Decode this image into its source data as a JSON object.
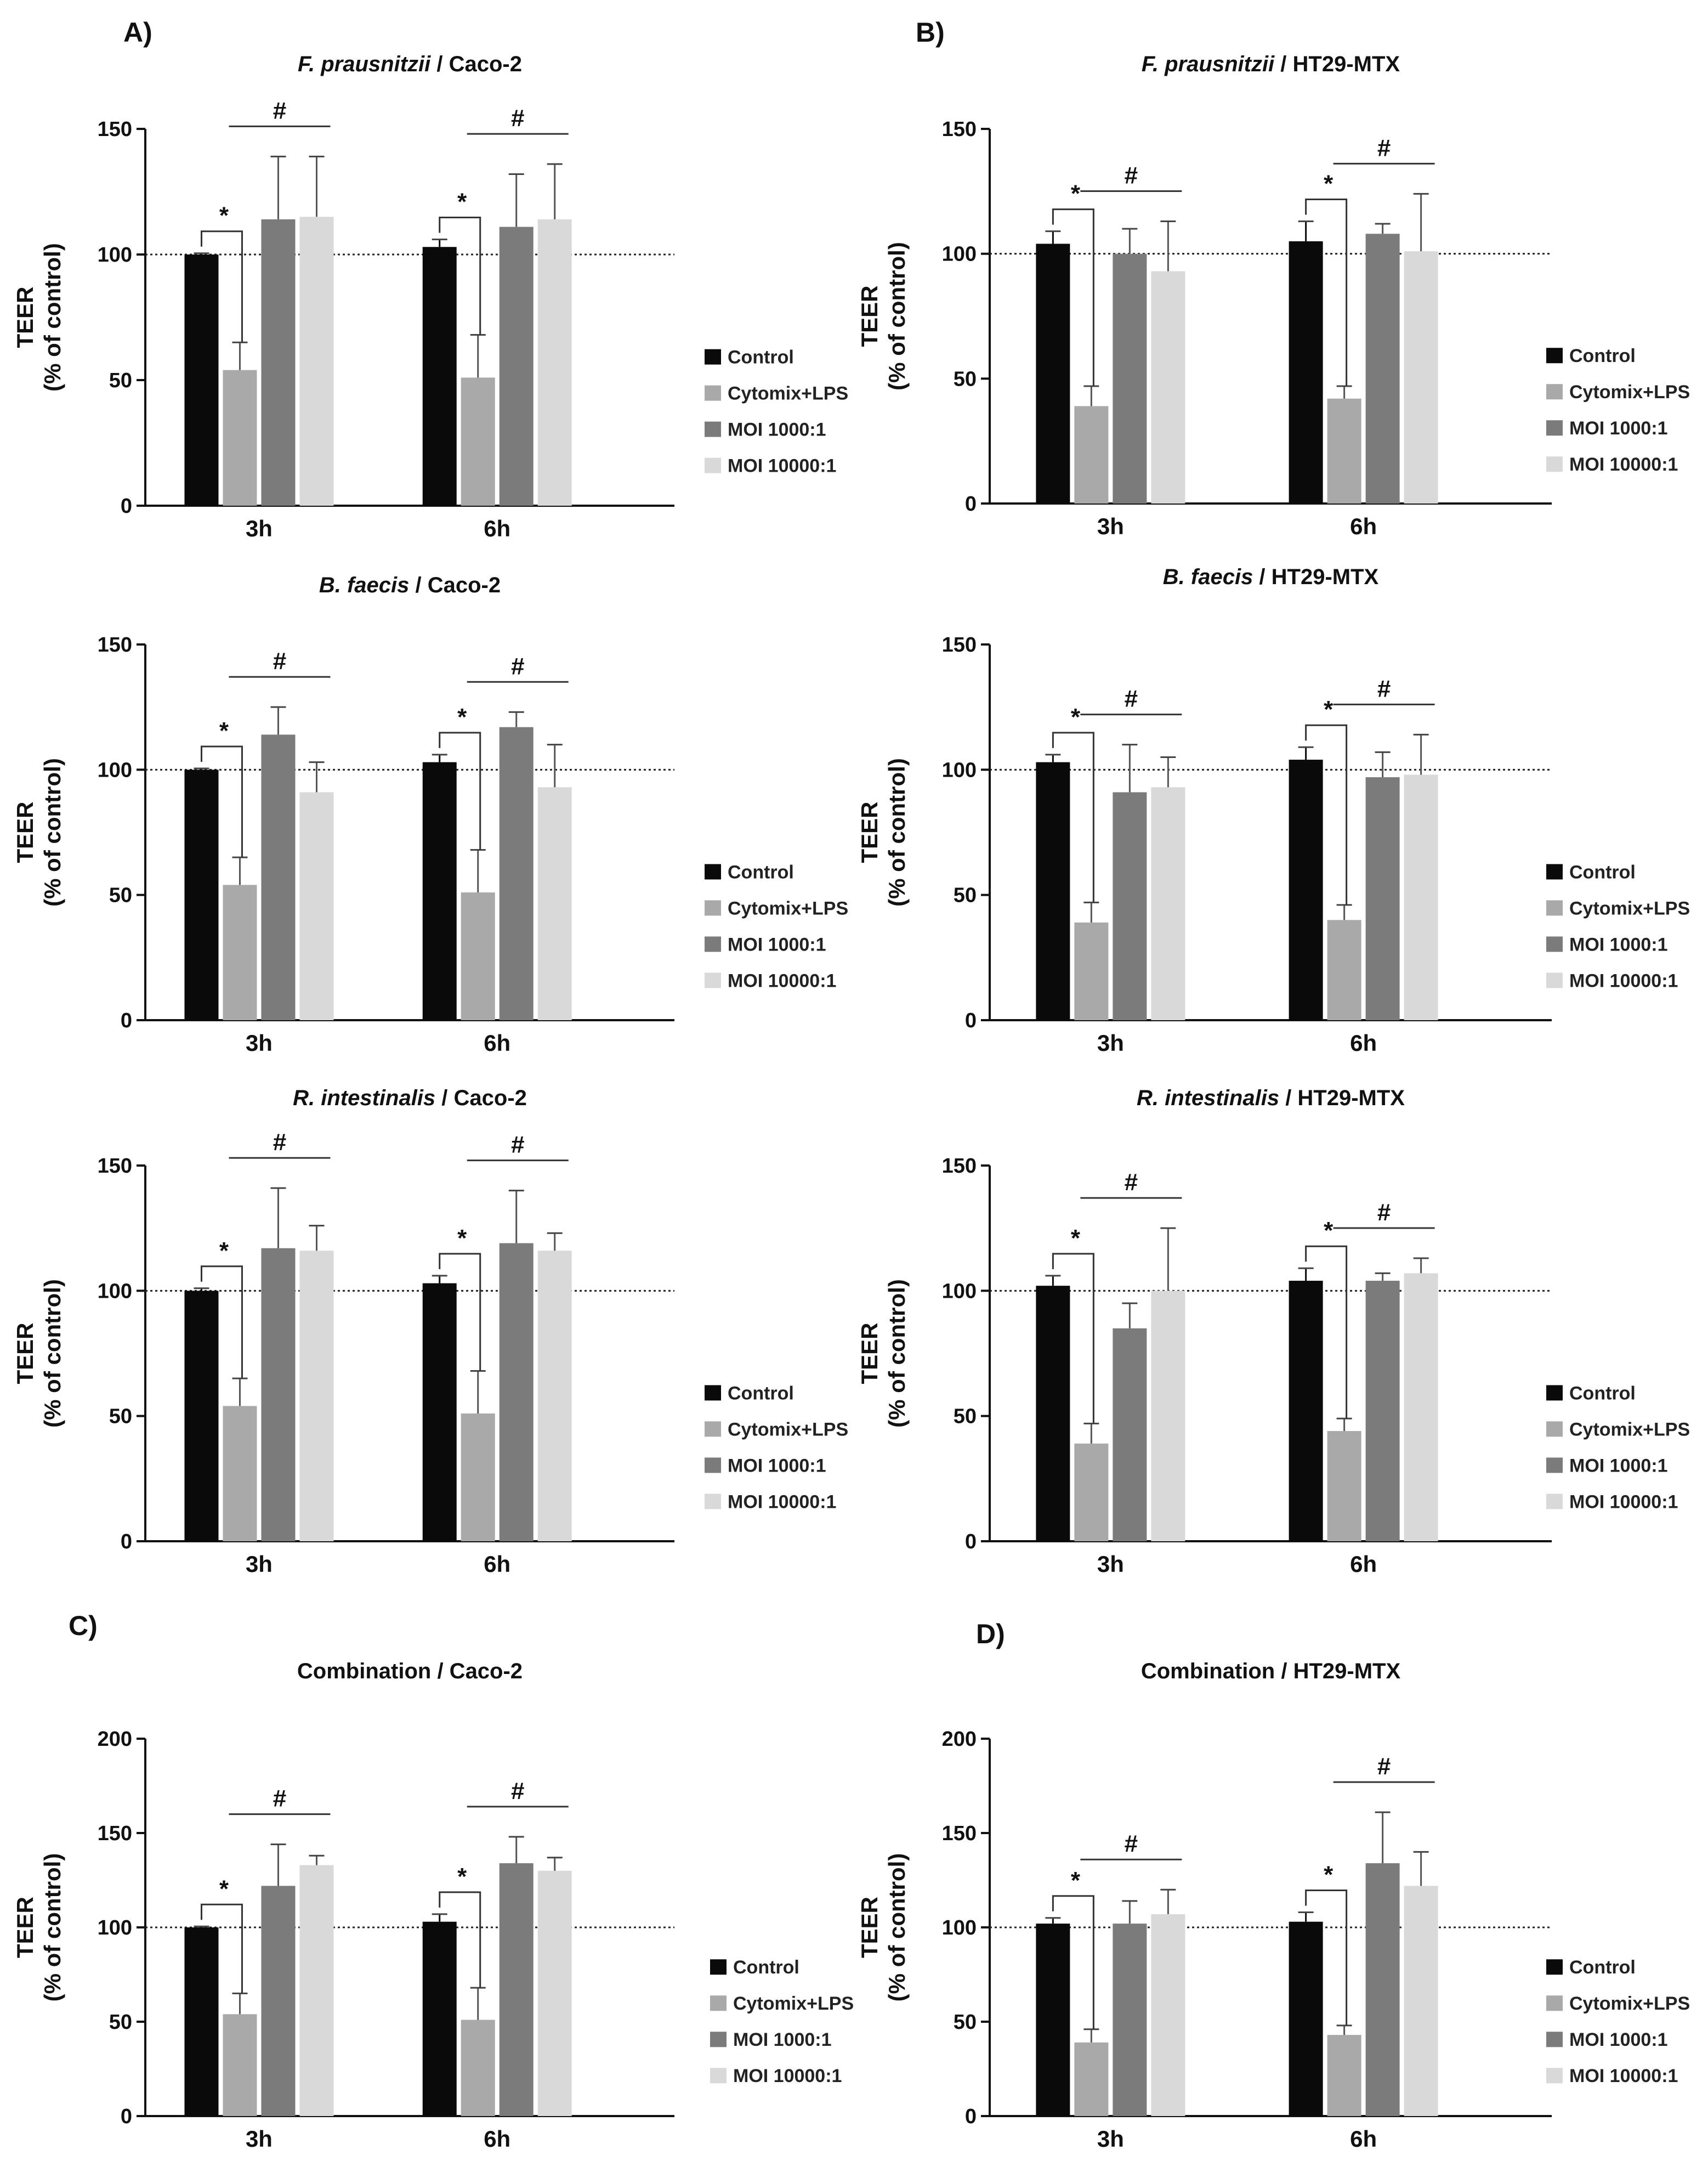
{
  "panel_labels": [
    "A)",
    "B)",
    "C)",
    "D)"
  ],
  "colors": {
    "Control": "#0a0a0a",
    "Cytomix+LPS": "#a9a9a9",
    "MOI 1000:1": "#7b7b7b",
    "MOI 10000:1": "#d9d9d9",
    "axis": "#111111"
  },
  "chart_data": [
    {
      "type": "bar",
      "title": "F. prausnitzii / Caco-2",
      "title_italic": "F. prausnitzii",
      "title_rest": " / Caco-2",
      "ylabel_lines": [
        "TEER",
        "(% of control)"
      ],
      "ylim": [
        0,
        150
      ],
      "yticks": [
        "0",
        "50",
        "100",
        "150"
      ],
      "reference_line": 100,
      "categories": [
        "3h",
        "6h"
      ],
      "series": [
        {
          "name": "Control",
          "values": [
            100,
            103
          ],
          "errors": [
            0.5,
            3
          ]
        },
        {
          "name": "Cytomix+LPS",
          "values": [
            54,
            51
          ],
          "errors": [
            11,
            17
          ]
        },
        {
          "name": "MOI 1000:1",
          "values": [
            114,
            111
          ],
          "errors": [
            25,
            21
          ]
        },
        {
          "name": "MOI 10000:1",
          "values": [
            115,
            114
          ],
          "errors": [
            24,
            22
          ]
        }
      ],
      "annotations": [
        "*",
        "#",
        "*",
        "#"
      ],
      "legend": [
        "Control",
        "Cytomix+LPS",
        "MOI 1000:1",
        "MOI 10000:1"
      ]
    },
    {
      "type": "bar",
      "title": "F. prausnitzii / HT29-MTX",
      "title_italic": "F. prausnitzii",
      "title_rest": " / HT29-MTX",
      "ylabel_lines": [
        "TEER",
        "(% of control)"
      ],
      "ylim": [
        0,
        150
      ],
      "yticks": [
        "0",
        "50",
        "100",
        "150"
      ],
      "reference_line": 100,
      "categories": [
        "3h",
        "6h"
      ],
      "series": [
        {
          "name": "Control",
          "values": [
            104,
            105
          ],
          "errors": [
            5,
            8
          ]
        },
        {
          "name": "Cytomix+LPS",
          "values": [
            39,
            42
          ],
          "errors": [
            8,
            5
          ]
        },
        {
          "name": "MOI 1000:1",
          "values": [
            100,
            108
          ],
          "errors": [
            10,
            4
          ]
        },
        {
          "name": "MOI 10000:1",
          "values": [
            93,
            101
          ],
          "errors": [
            20,
            23
          ]
        }
      ],
      "annotations": [
        "*",
        "#",
        "*",
        "#"
      ],
      "legend": [
        "Control",
        "Cytomix+LPS",
        "MOI 1000:1",
        "MOI 10000:1"
      ]
    },
    {
      "type": "bar",
      "title": "B. faecis / Caco-2",
      "title_italic": "B. faecis",
      "title_rest": " / Caco-2",
      "ylabel_lines": [
        "TEER",
        "(% of control)"
      ],
      "ylim": [
        0,
        150
      ],
      "yticks": [
        "0",
        "50",
        "100",
        "150"
      ],
      "reference_line": 100,
      "categories": [
        "3h",
        "6h"
      ],
      "series": [
        {
          "name": "Control",
          "values": [
            100,
            103
          ],
          "errors": [
            0.5,
            3
          ]
        },
        {
          "name": "Cytomix+LPS",
          "values": [
            54,
            51
          ],
          "errors": [
            11,
            17
          ]
        },
        {
          "name": "MOI 1000:1",
          "values": [
            114,
            117
          ],
          "errors": [
            11,
            6
          ]
        },
        {
          "name": "MOI 10000:1",
          "values": [
            91,
            93
          ],
          "errors": [
            12,
            17
          ]
        }
      ],
      "annotations": [
        "*",
        "#",
        "*",
        "#"
      ],
      "legend": [
        "Control",
        "Cytomix+LPS",
        "MOI 1000:1",
        "MOI 10000:1"
      ]
    },
    {
      "type": "bar",
      "title": "B. faecis / HT29-MTX",
      "title_italic": "B. faecis",
      "title_rest": " / HT29-MTX",
      "ylabel_lines": [
        "TEER",
        "(% of control)"
      ],
      "ylim": [
        0,
        150
      ],
      "yticks": [
        "0",
        "50",
        "100",
        "150"
      ],
      "reference_line": 100,
      "categories": [
        "3h",
        "6h"
      ],
      "series": [
        {
          "name": "Control",
          "values": [
            103,
            104
          ],
          "errors": [
            3,
            5
          ]
        },
        {
          "name": "Cytomix+LPS",
          "values": [
            39,
            40
          ],
          "errors": [
            8,
            6
          ]
        },
        {
          "name": "MOI 1000:1",
          "values": [
            91,
            97
          ],
          "errors": [
            19,
            10
          ]
        },
        {
          "name": "MOI 10000:1",
          "values": [
            93,
            98
          ],
          "errors": [
            12,
            16
          ]
        }
      ],
      "annotations": [
        "*",
        "#",
        "*",
        "#"
      ],
      "legend": [
        "Control",
        "Cytomix+LPS",
        "MOI 1000:1",
        "MOI 10000:1"
      ]
    },
    {
      "type": "bar",
      "title": "R. intestinalis / Caco-2",
      "title_italic": "R. intestinalis",
      "title_rest": " / Caco-2",
      "ylabel_lines": [
        "TEER",
        "(% of control)"
      ],
      "ylim": [
        0,
        150
      ],
      "yticks": [
        "0",
        "50",
        "100",
        "150"
      ],
      "reference_line": 100,
      "categories": [
        "3h",
        "6h"
      ],
      "series": [
        {
          "name": "Control",
          "values": [
            100,
            103
          ],
          "errors": [
            1,
            3
          ]
        },
        {
          "name": "Cytomix+LPS",
          "values": [
            54,
            51
          ],
          "errors": [
            11,
            17
          ]
        },
        {
          "name": "MOI 1000:1",
          "values": [
            117,
            119
          ],
          "errors": [
            24,
            21
          ]
        },
        {
          "name": "MOI 10000:1",
          "values": [
            116,
            116
          ],
          "errors": [
            10,
            7
          ]
        }
      ],
      "annotations": [
        "*",
        "#",
        "*",
        "#"
      ],
      "legend": [
        "Control",
        "Cytomix+LPS",
        "MOI 1000:1",
        "MOI 10000:1"
      ]
    },
    {
      "type": "bar",
      "title": "R. intestinalis / HT29-MTX",
      "title_italic": "R. intestinalis",
      "title_rest": " / HT29-MTX",
      "ylabel_lines": [
        "TEER",
        "(% of control)"
      ],
      "ylim": [
        0,
        150
      ],
      "yticks": [
        "0",
        "50",
        "100",
        "150"
      ],
      "reference_line": 100,
      "categories": [
        "3h",
        "6h"
      ],
      "series": [
        {
          "name": "Control",
          "values": [
            102,
            104
          ],
          "errors": [
            4,
            5
          ]
        },
        {
          "name": "Cytomix+LPS",
          "values": [
            39,
            44
          ],
          "errors": [
            8,
            5
          ]
        },
        {
          "name": "MOI 1000:1",
          "values": [
            85,
            104
          ],
          "errors": [
            10,
            3
          ]
        },
        {
          "name": "MOI 10000:1",
          "values": [
            100,
            107
          ],
          "errors": [
            25,
            6
          ]
        }
      ],
      "annotations": [
        "*",
        "#",
        "*",
        "#"
      ],
      "legend": [
        "Control",
        "Cytomix+LPS",
        "MOI 1000:1",
        "MOI 10000:1"
      ]
    },
    {
      "type": "bar",
      "title": "Combination / Caco-2",
      "title_italic": "",
      "title_rest": "Combination / Caco-2",
      "ylabel_lines": [
        "TEER",
        "(% of control)"
      ],
      "ylim": [
        0,
        200
      ],
      "yticks": [
        "0",
        "50",
        "100",
        "150",
        "200"
      ],
      "reference_line": 100,
      "categories": [
        "3h",
        "6h"
      ],
      "series": [
        {
          "name": "Control",
          "values": [
            100,
            103
          ],
          "errors": [
            0.5,
            4
          ]
        },
        {
          "name": "Cytomix+LPS",
          "values": [
            54,
            51
          ],
          "errors": [
            11,
            17
          ]
        },
        {
          "name": "MOI 1000:1",
          "values": [
            122,
            134
          ],
          "errors": [
            22,
            14
          ]
        },
        {
          "name": "MOI 10000:1",
          "values": [
            133,
            130
          ],
          "errors": [
            5,
            7
          ]
        }
      ],
      "annotations": [
        "*",
        "#",
        "*",
        "#"
      ],
      "legend": [
        "Control",
        "Cytomix+LPS",
        "MOI 1000:1",
        "MOI 10000:1"
      ]
    },
    {
      "type": "bar",
      "title": "Combination / HT29-MTX",
      "title_italic": "",
      "title_rest": "Combination / HT29-MTX",
      "ylabel_lines": [
        "TEER",
        "(% of control)"
      ],
      "ylim": [
        0,
        200
      ],
      "yticks": [
        "0",
        "50",
        "100",
        "150",
        "200"
      ],
      "reference_line": 100,
      "categories": [
        "3h",
        "6h"
      ],
      "series": [
        {
          "name": "Control",
          "values": [
            102,
            103
          ],
          "errors": [
            3,
            5
          ]
        },
        {
          "name": "Cytomix+LPS",
          "values": [
            39,
            43
          ],
          "errors": [
            7,
            5
          ]
        },
        {
          "name": "MOI 1000:1",
          "values": [
            102,
            134
          ],
          "errors": [
            12,
            27
          ]
        },
        {
          "name": "MOI 10000:1",
          "values": [
            107,
            122
          ],
          "errors": [
            13,
            18
          ]
        }
      ],
      "annotations": [
        "*",
        "#",
        "*",
        "#"
      ],
      "legend": [
        "Control",
        "Cytomix+LPS",
        "MOI 1000:1",
        "MOI 10000:1"
      ]
    }
  ]
}
